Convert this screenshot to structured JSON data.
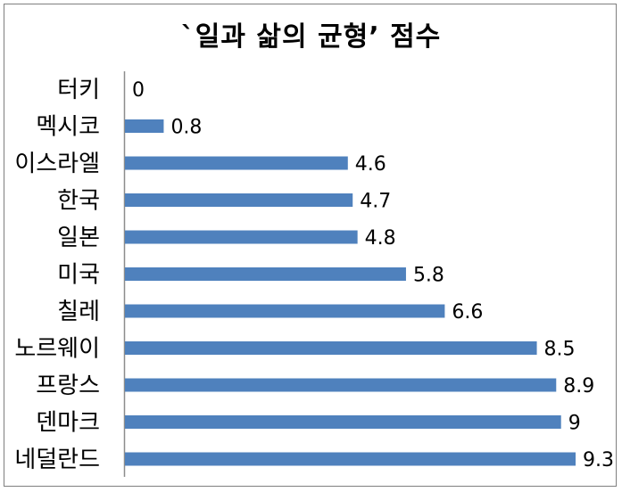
{
  "chart_data": {
    "type": "bar",
    "orientation": "horizontal",
    "title": "`일과 삶의 균형’ 점수",
    "categories": [
      "터키",
      "멕시코",
      "이스라엘",
      "한국",
      "일본",
      "미국",
      "칠레",
      "노르웨이",
      "프랑스",
      "덴마크",
      "네덜란드"
    ],
    "values": [
      0,
      0.8,
      4.6,
      4.7,
      4.8,
      5.8,
      6.6,
      8.5,
      8.9,
      9,
      9.3
    ],
    "value_labels": [
      "0",
      "0.8",
      "4.6",
      "4.7",
      "4.8",
      "5.8",
      "6.6",
      "8.5",
      "8.9",
      "9",
      "9.3"
    ],
    "xlim": [
      0,
      9.3
    ],
    "xlabel": "",
    "ylabel": "",
    "grid": false,
    "bar_color": "#4f81bd",
    "legend": "none"
  }
}
